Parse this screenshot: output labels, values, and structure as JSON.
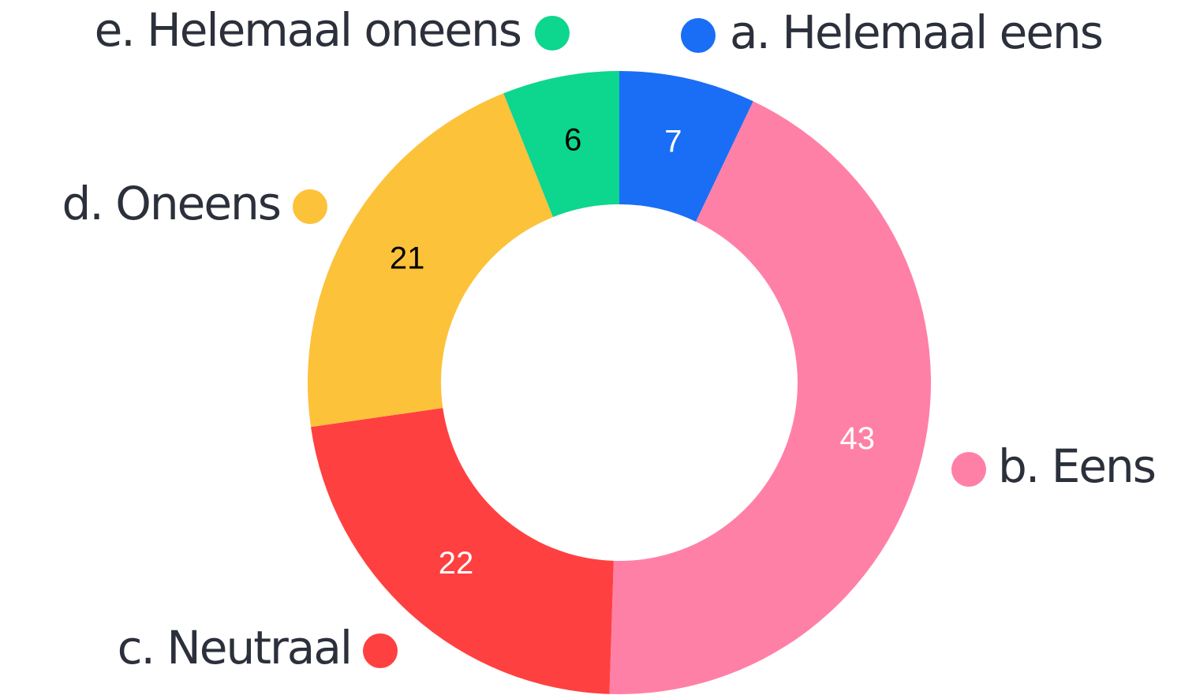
{
  "chart_data": {
    "type": "donut",
    "categories": [
      "a. Helemaal eens",
      "b. Eens",
      "c. Neutraal",
      "d. Oneens",
      "e. Helemaal oneens"
    ],
    "values": [
      7,
      43,
      22,
      21,
      6
    ],
    "colors": [
      "#1a6ef5",
      "#ff80a6",
      "#ff4040",
      "#fcc23a",
      "#0dd68f"
    ],
    "value_label_colors": [
      "#ffffff",
      "#ffffff",
      "#ffffff",
      "#000000",
      "#000000"
    ]
  }
}
